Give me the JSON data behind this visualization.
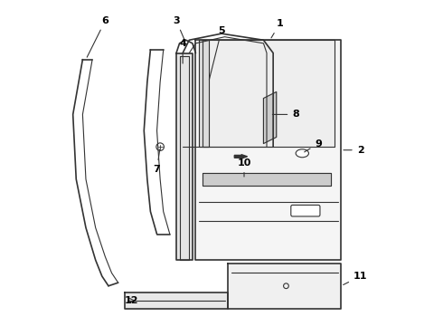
{
  "bg_color": "#ffffff",
  "line_color": "#333333",
  "label_color": "#000000",
  "figsize": [
    4.9,
    3.6
  ],
  "dpi": 100
}
